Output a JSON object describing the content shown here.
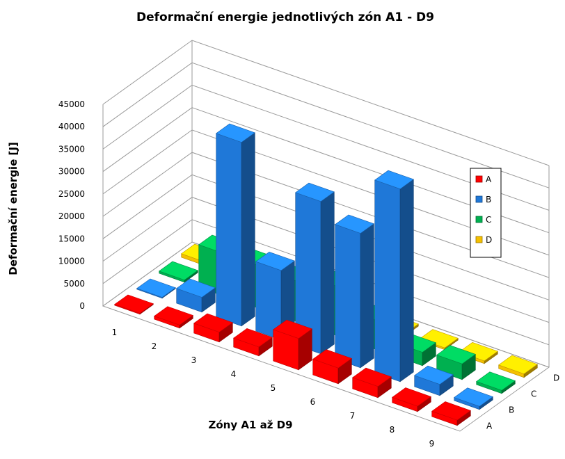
{
  "chart_data": {
    "type": "bar",
    "subtype": "3d-column",
    "title": "Deformační energie jednotlivých zón A1 - D9",
    "xlabel": "Zóny A1 až D9",
    "ylabel": "Deformační energie [J]",
    "categories": [
      "1",
      "2",
      "3",
      "4",
      "5",
      "6",
      "7",
      "8",
      "9"
    ],
    "depth_labels": [
      "A",
      "B",
      "C",
      "D"
    ],
    "y_ticks": [
      "0",
      "5000",
      "10000",
      "15000",
      "20000",
      "25000",
      "30000",
      "35000",
      "40000",
      "45000"
    ],
    "ylim": [
      0,
      45000
    ],
    "grid": true,
    "legend_position": "right",
    "series": [
      {
        "name": "A",
        "color": "#ff0000",
        "values": [
          200,
          700,
          2200,
          2000,
          7000,
          3500,
          2500,
          1200,
          1200
        ]
      },
      {
        "name": "B",
        "color": "#1f78d8",
        "values": [
          200,
          3300,
          41000,
          15500,
          34000,
          30000,
          43000,
          2500,
          700
        ]
      },
      {
        "name": "C",
        "color": "#00b050",
        "values": [
          500,
          9500,
          9500,
          9000,
          11000,
          6500,
          3000,
          3500,
          700
        ]
      },
      {
        "name": "D",
        "color": "#f5c000",
        "values": [
          800,
          1000,
          500,
          500,
          500,
          500,
          400,
          600,
          800
        ]
      }
    ]
  }
}
